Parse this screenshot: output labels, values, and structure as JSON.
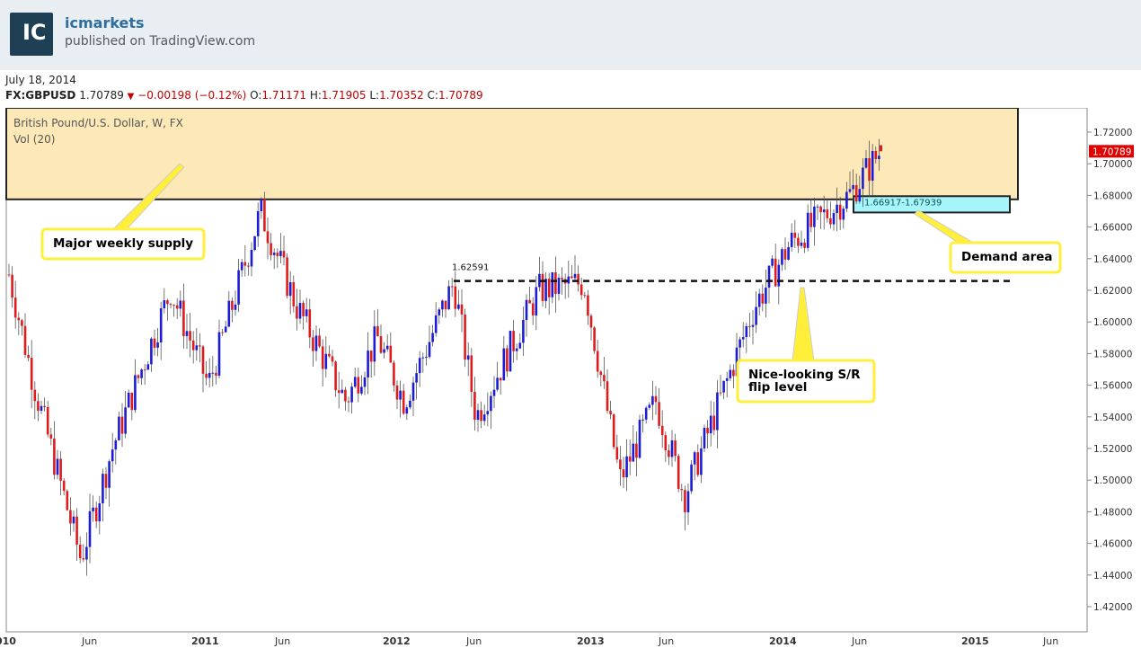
{
  "header": {
    "brand": "icmarkets",
    "published": "published on TradingView.com",
    "logo_text": "IC"
  },
  "meta": {
    "date": "July 18, 2014",
    "symbol": "FX:GBPUSD",
    "last": "1.70789",
    "change": "−0.00198",
    "change_pct": "(−0.12%)",
    "o_label": "O:",
    "o": "1.71171",
    "h_label": "H:",
    "h": "1.71905",
    "l_label": "L:",
    "l": "1.70352",
    "c_label": "C:",
    "c": "1.70789"
  },
  "chart_title": "British Pound/U.S. Dollar, W, FX",
  "vol_label": "Vol (20)",
  "colors": {
    "up": "#1c1cd6",
    "down": "#e01b1b",
    "supply": "#fde9b8",
    "demand": "#a6f5fb",
    "callout": "#ffef3a",
    "price_tag": "#e00000"
  },
  "chart_data": {
    "type": "candlestick",
    "ylim": [
      1.41,
      1.73
    ],
    "yticks": [
      "1.72000",
      "1.70000",
      "1.68000",
      "1.66000",
      "1.64000",
      "1.62000",
      "1.60000",
      "1.58000",
      "1.56000",
      "1.54000",
      "1.52000",
      "1.50000",
      "1.48000",
      "1.46000",
      "1.44000",
      "1.42000"
    ],
    "xticks": [
      "010",
      "Jun",
      "2011",
      "Jun",
      "2012",
      "Jun",
      "2013",
      "Jun",
      "2014",
      "Jun",
      "2015",
      "Jun"
    ],
    "last_price_tag": "1.70789",
    "zones": {
      "supply": {
        "label": "Major weekly supply",
        "top": 1.73,
        "bottom": 1.6775
      },
      "demand": {
        "label": "Demand area",
        "range_text": "1.66917-1.67939",
        "top": 1.6795,
        "bottom": 1.6692
      }
    },
    "sr_level": {
      "value": 1.62591,
      "label": "1.62591",
      "callout": [
        "Nice-looking S/R",
        "flip level"
      ]
    },
    "series_anchors": [
      {
        "date": "2010-05",
        "price": 1.63
      },
      {
        "date": "2010-03",
        "price": 1.56
      },
      {
        "date": "2010-05b",
        "price": 1.45
      },
      {
        "date": "2010-07",
        "price": 1.52
      },
      {
        "date": "2010-11",
        "price": 1.62
      },
      {
        "date": "2011-01",
        "price": 1.56
      },
      {
        "date": "2011-04",
        "price": 1.67
      },
      {
        "date": "2011-06",
        "price": 1.61
      },
      {
        "date": "2011-09",
        "price": 1.55
      },
      {
        "date": "2011-11",
        "price": 1.59
      },
      {
        "date": "2012-02",
        "price": 1.55
      },
      {
        "date": "2012-05",
        "price": 1.625
      },
      {
        "date": "2012-07",
        "price": 1.54
      },
      {
        "date": "2012-10",
        "price": 1.62
      },
      {
        "date": "2013-01",
        "price": 1.625
      },
      {
        "date": "2013-03",
        "price": 1.5
      },
      {
        "date": "2013-05",
        "price": 1.55
      },
      {
        "date": "2013-07",
        "price": 1.49
      },
      {
        "date": "2013-10",
        "price": 1.61
      },
      {
        "date": "2014-01",
        "price": 1.65
      },
      {
        "date": "2014-04",
        "price": 1.68
      },
      {
        "date": "2014-07",
        "price": 1.708
      }
    ]
  }
}
